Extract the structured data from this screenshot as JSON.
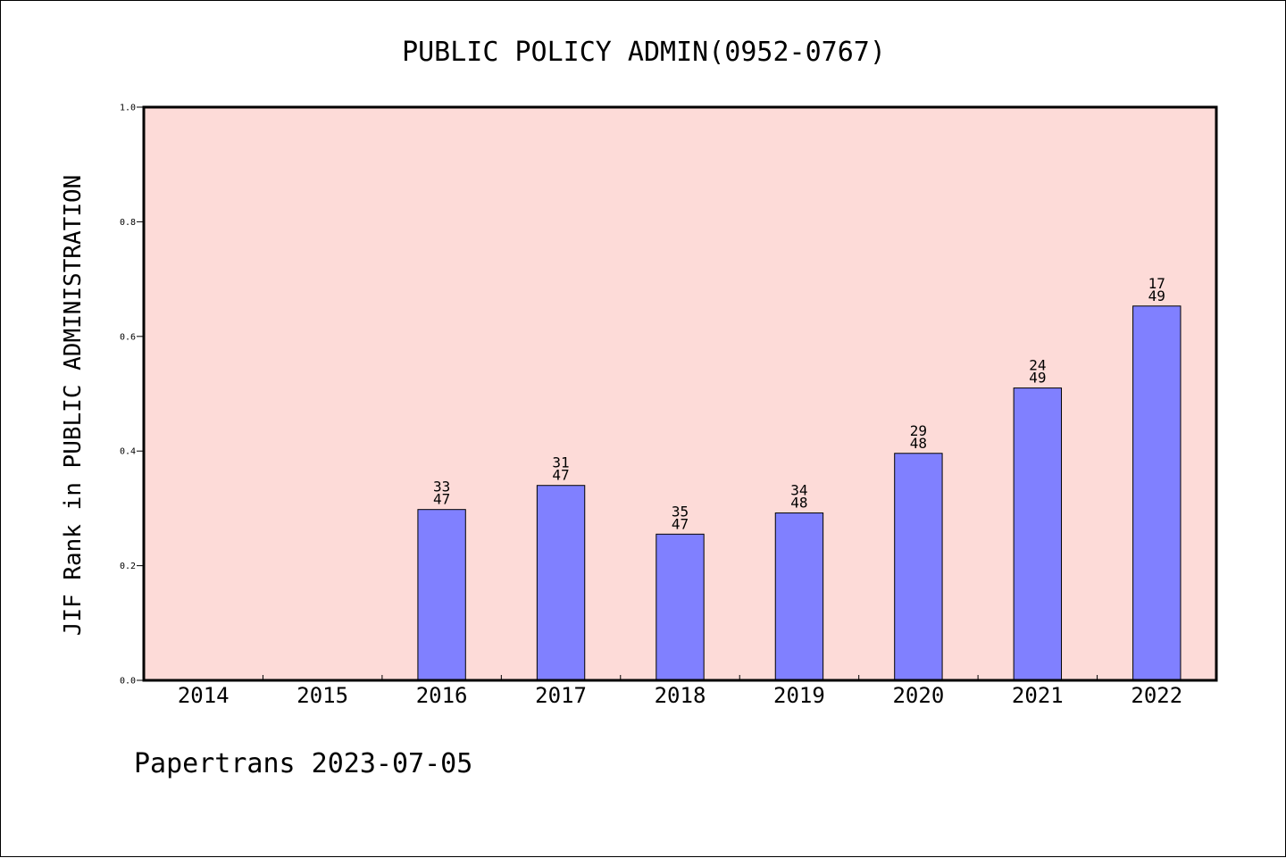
{
  "chart_data": {
    "type": "bar",
    "title": "PUBLIC POLICY ADMIN(0952-0767)",
    "ylabel": "JIF Rank in PUBLIC ADMINISTRATION",
    "xlabel": "",
    "ylim": [
      0,
      1.0
    ],
    "yticks": [
      "0.0",
      "0.2",
      "0.4",
      "0.6",
      "0.8",
      "1.0"
    ],
    "categories": [
      "2014",
      "2015",
      "2016",
      "2017",
      "2018",
      "2019",
      "2020",
      "2021",
      "2022"
    ],
    "values": [
      null,
      null,
      0.298,
      0.34,
      0.255,
      0.292,
      0.396,
      0.51,
      0.653
    ],
    "bar_labels": [
      null,
      null,
      {
        "rank": "33",
        "total": "47"
      },
      {
        "rank": "31",
        "total": "47"
      },
      {
        "rank": "35",
        "total": "47"
      },
      {
        "rank": "34",
        "total": "48"
      },
      {
        "rank": "29",
        "total": "48"
      },
      {
        "rank": "24",
        "total": "49"
      },
      {
        "rank": "17",
        "total": "49"
      }
    ],
    "grid": false,
    "colors": {
      "plot_background": "#fddbd8",
      "bar_fill": "#8080ff",
      "bar_edge": "#000000"
    }
  },
  "footer": {
    "text": "Papertrans 2023-07-05"
  }
}
